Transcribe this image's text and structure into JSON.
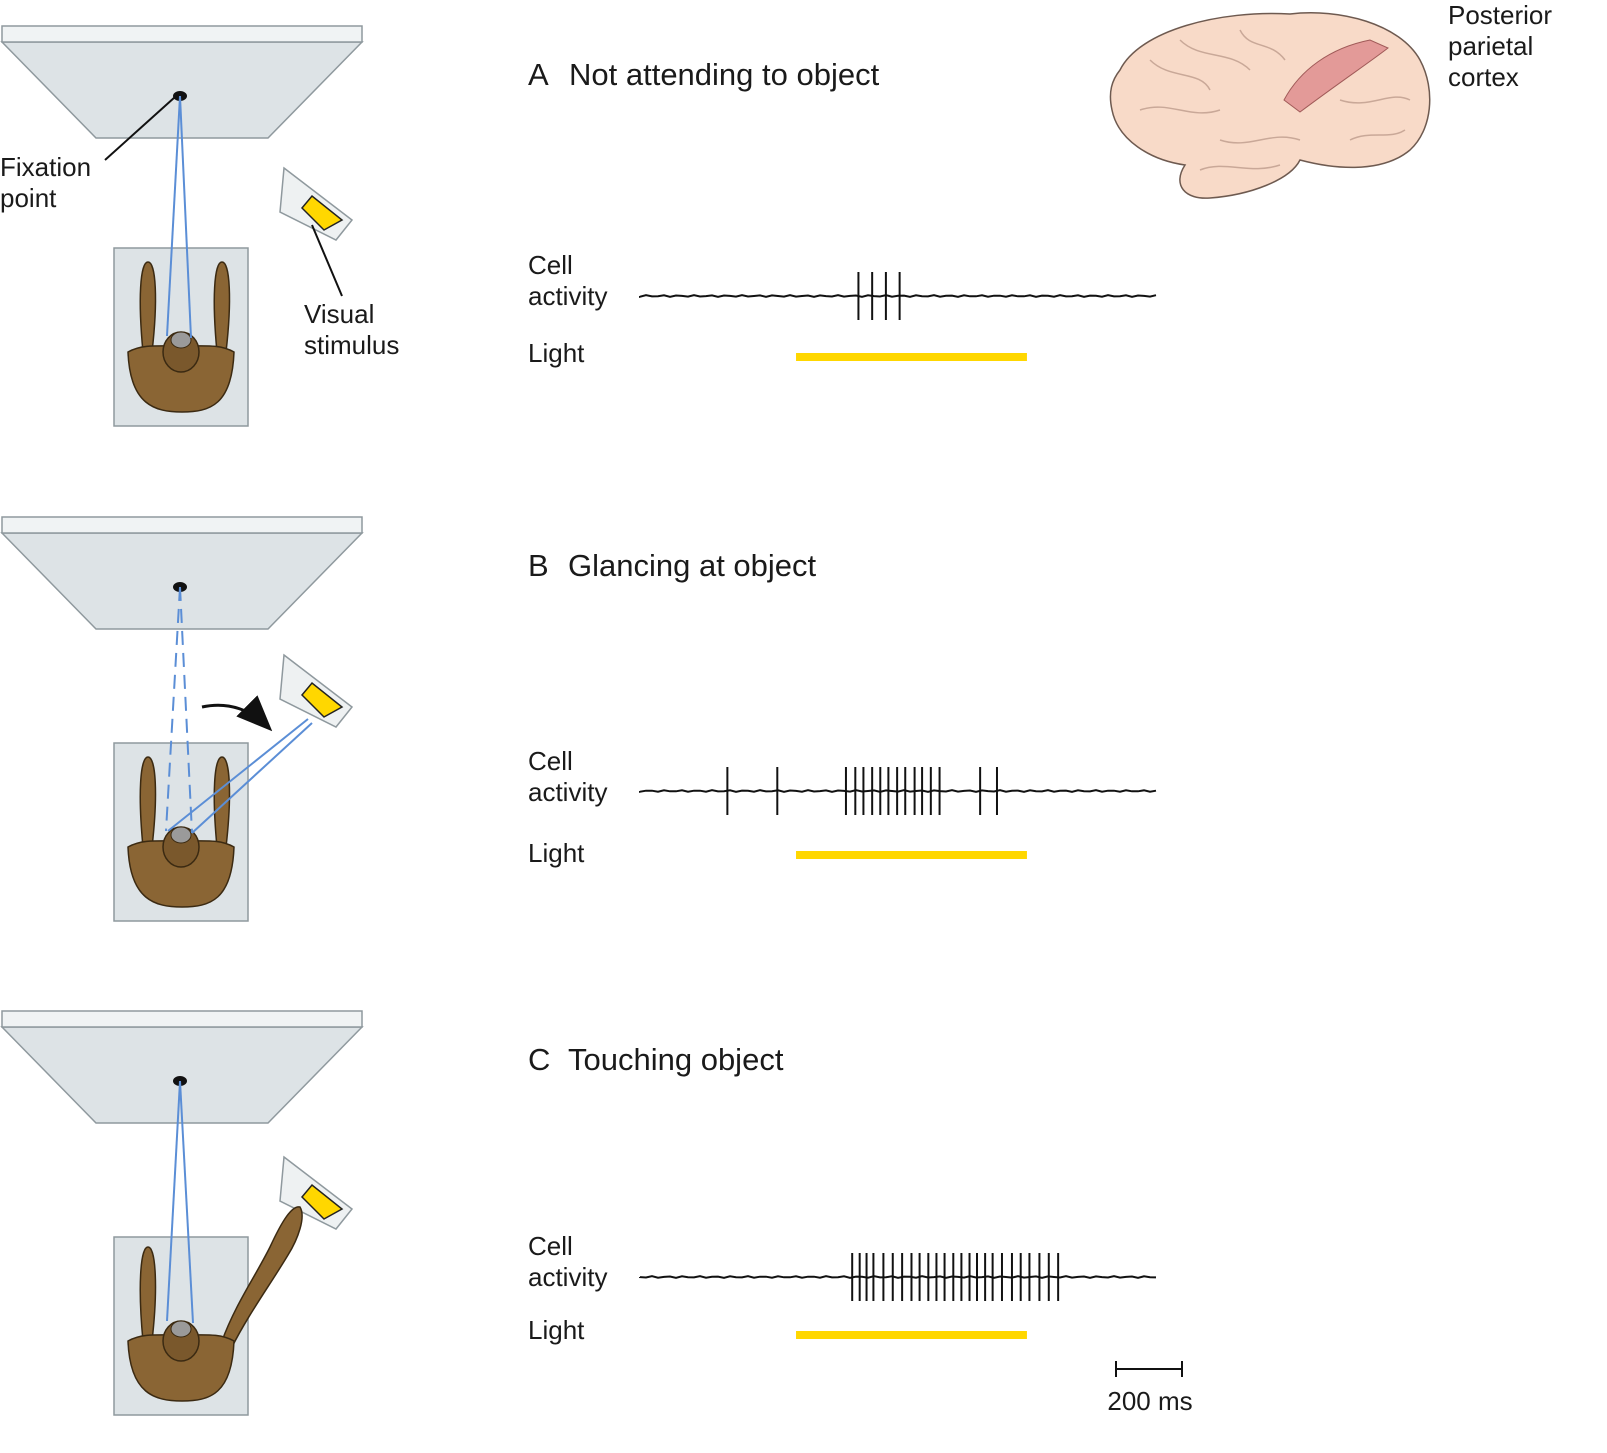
{
  "labels": {
    "fixation": [
      "Fixation",
      "point"
    ],
    "visual_stimulus": [
      "Visual",
      "stimulus"
    ],
    "brain": [
      "Posterior",
      "parietal",
      "cortex"
    ],
    "cell_activity": [
      "Cell",
      "activity"
    ],
    "light": "Light",
    "scale_bar": "200 ms"
  },
  "panels": [
    {
      "letter": "A",
      "title": "Not attending to object",
      "spikes_ms": [
        350,
        372,
        394,
        416
      ]
    },
    {
      "letter": "B",
      "title": "Glancing at object",
      "spikes_ms": [
        140,
        220,
        330,
        345,
        358,
        372,
        385,
        398,
        412,
        425,
        440,
        452,
        466,
        480,
        545,
        572
      ]
    },
    {
      "letter": "C",
      "title": "Touching object",
      "spikes_ms": [
        340,
        352,
        363,
        374,
        390,
        405,
        420,
        435,
        448,
        462,
        475,
        488,
        502,
        515,
        528,
        540,
        553,
        565,
        580,
        596,
        610,
        624,
        640,
        655,
        670
      ]
    }
  ],
  "light_on_ms": [
    250,
    620
  ],
  "trace_duration_ms": 830,
  "colors": {
    "light_bar": "#FFD700",
    "gaze_line": "#5B8ED6",
    "stimulus": "#FFD700",
    "screen": "#DDE3E6",
    "monkey": "#8A6534",
    "cortex": "#E39A98",
    "brain": "#F8DAC8"
  }
}
